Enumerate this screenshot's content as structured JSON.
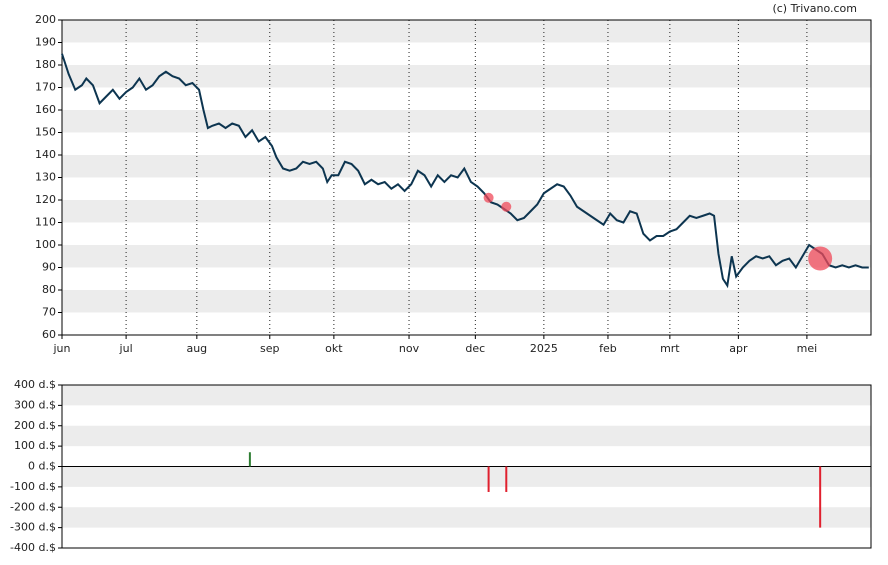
{
  "credit": "(c) Trivano.com",
  "chart_data": [
    {
      "type": "line",
      "xlim": [
        0,
        366
      ],
      "xticks": [
        {
          "value": 0,
          "label": "jun"
        },
        {
          "value": 29,
          "label": "jul"
        },
        {
          "value": 61,
          "label": "aug"
        },
        {
          "value": 94,
          "label": "sep"
        },
        {
          "value": 123,
          "label": "okt"
        },
        {
          "value": 157,
          "label": "nov"
        },
        {
          "value": 187,
          "label": "dec"
        },
        {
          "value": 218,
          "label": "2025"
        },
        {
          "value": 247,
          "label": "feb"
        },
        {
          "value": 275,
          "label": "mrt"
        },
        {
          "value": 306,
          "label": "apr"
        },
        {
          "value": 337,
          "label": "mei"
        }
      ],
      "ylim": [
        60,
        200
      ],
      "yticks": [
        60,
        70,
        80,
        90,
        100,
        110,
        120,
        130,
        140,
        150,
        160,
        170,
        180,
        190,
        200
      ],
      "x": [
        0,
        3,
        6,
        9,
        11,
        14,
        17,
        20,
        23,
        26,
        29,
        32,
        35,
        38,
        41,
        44,
        47,
        50,
        53,
        56,
        59,
        62,
        64,
        66,
        68,
        71,
        74,
        77,
        80,
        83,
        86,
        89,
        92,
        95,
        97,
        100,
        103,
        106,
        109,
        112,
        115,
        118,
        120,
        122,
        125,
        128,
        131,
        134,
        137,
        140,
        143,
        146,
        149,
        152,
        155,
        158,
        161,
        164,
        167,
        170,
        173,
        176,
        179,
        182,
        185,
        188,
        191,
        194,
        197,
        200,
        203,
        206,
        209,
        212,
        215,
        218,
        221,
        224,
        227,
        230,
        233,
        236,
        239,
        242,
        245,
        248,
        251,
        254,
        257,
        260,
        263,
        266,
        269,
        272,
        275,
        278,
        281,
        284,
        287,
        290,
        293,
        295,
        297,
        299,
        301,
        303,
        305,
        308,
        311,
        314,
        317,
        320,
        323,
        326,
        329,
        332,
        335,
        338,
        341,
        344,
        347,
        350,
        353,
        356,
        359,
        362,
        365
      ],
      "series": [
        {
          "color": "#0d3550",
          "values": [
            185,
            176,
            169,
            171,
            174,
            171,
            163,
            166,
            169,
            165,
            168,
            170,
            174,
            169,
            171,
            175,
            177,
            175,
            174,
            171,
            172,
            169,
            160,
            152,
            153,
            154,
            152,
            154,
            153,
            148,
            151,
            146,
            148,
            144,
            139,
            134,
            133,
            134,
            137,
            136,
            137,
            134,
            128,
            131,
            131,
            137,
            136,
            133,
            127,
            129,
            127,
            128,
            125,
            127,
            124,
            127,
            133,
            131,
            126,
            131,
            128,
            131,
            130,
            134,
            128,
            126,
            123,
            119,
            118,
            116,
            114,
            111,
            112,
            115,
            118,
            123,
            125,
            127,
            126,
            122,
            117,
            115,
            113,
            111,
            109,
            114,
            111,
            110,
            115,
            114,
            105,
            102,
            104,
            104,
            106,
            107,
            110,
            113,
            112,
            113,
            114,
            113,
            96,
            85,
            82,
            95,
            86,
            90,
            93,
            95,
            94,
            95,
            91,
            93,
            94,
            90,
            95,
            100,
            98,
            96,
            91,
            90,
            91,
            90,
            91,
            90,
            90
          ]
        }
      ],
      "markers": {
        "color": "#f04a5a",
        "x": [
          193,
          201,
          343
        ],
        "values": [
          121,
          117,
          94
        ]
      },
      "grid": true
    },
    {
      "type": "bar",
      "xlim": [
        0,
        366
      ],
      "ylim": [
        -400,
        400
      ],
      "yticks": [
        {
          "value": -400,
          "label": "-400 d.$"
        },
        {
          "value": -300,
          "label": "-300 d.$"
        },
        {
          "value": -200,
          "label": "-200 d.$"
        },
        {
          "value": -100,
          "label": "-100 d.$"
        },
        {
          "value": 0,
          "label": "0 d.$"
        },
        {
          "value": 100,
          "label": "100 d.$"
        },
        {
          "value": 200,
          "label": "200 d.$"
        },
        {
          "value": 300,
          "label": "300 d.$"
        },
        {
          "value": 400,
          "label": "400 d.$"
        }
      ],
      "x": [
        85,
        193,
        201,
        343
      ],
      "values": [
        70,
        -125,
        -125,
        -300
      ],
      "colors": [
        "#2e7d32",
        "#e0202e",
        "#e0202e",
        "#e0202e"
      ]
    }
  ]
}
